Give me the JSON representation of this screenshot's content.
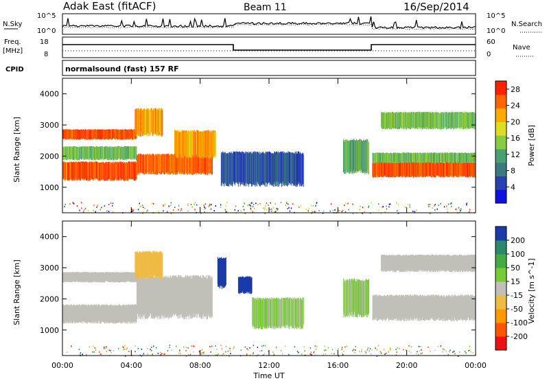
{
  "header": {
    "station": "Adak East (fitACF)",
    "beam": "Beam 11",
    "date": "16/Sep/2014"
  },
  "colors": {
    "power_scale": [
      "#1010e0",
      "#2a40b0",
      "#3a7a80",
      "#4aa070",
      "#88cc44",
      "#dddd22",
      "#ffaa00",
      "#ff6600",
      "#ff2200"
    ],
    "velocity_scale": [
      "#ee1111",
      "#ff5500",
      "#ff9900",
      "#eebb44",
      "#c0c0b8",
      "#77cc33",
      "#44aa44",
      "#2a8a6a",
      "#1a3aaa"
    ]
  },
  "top_panels": {
    "nsky": {
      "label": "N.Sky",
      "left_ticks": [
        "10^5",
        "10^0"
      ],
      "right_label": "N.Search",
      "right_ticks": [
        "10^5",
        "10^0"
      ]
    },
    "freq": {
      "label_1": "Freq.",
      "label_2": "[MHz]",
      "left_ticks": [
        "18",
        "8"
      ],
      "right_label": "Nave",
      "right_ticks": [
        "60",
        "0"
      ]
    },
    "cpid": {
      "label": "CPID",
      "text": "normalsound (fast) 157 RF"
    }
  },
  "chart_data": [
    {
      "type": "heatmap",
      "panel": "power",
      "ylabel": "Slant Range [km]",
      "yticks": [
        "1000",
        "2000",
        "3000",
        "4000"
      ],
      "ylim": [
        180,
        4500
      ],
      "colorbar_label": "Power [dB]",
      "colorbar_ticks": [
        "4",
        "8",
        "12",
        "16",
        "20",
        "24",
        "28"
      ],
      "colorbar_range": [
        0,
        30
      ],
      "bands": [
        {
          "t0": 0,
          "t1": 4.3,
          "r0": 2550,
          "r1": 2850,
          "value": 26
        },
        {
          "t0": 0,
          "t1": 4.3,
          "r0": 1250,
          "r1": 1800,
          "value": 26
        },
        {
          "t0": 0,
          "t1": 4.3,
          "r0": 1900,
          "r1": 2300,
          "value": 14
        },
        {
          "t0": 4.3,
          "t1": 8.7,
          "r0": 1450,
          "r1": 2050,
          "value": 25
        },
        {
          "t0": 6.5,
          "t1": 8.9,
          "r0": 2000,
          "r1": 2800,
          "value": 22
        },
        {
          "t0": 4.2,
          "t1": 5.8,
          "r0": 2700,
          "r1": 3500,
          "value": 22
        },
        {
          "t0": 9.2,
          "t1": 14.0,
          "r0": 1100,
          "r1": 2100,
          "value": 6
        },
        {
          "t0": 16.3,
          "t1": 17.8,
          "r0": 1500,
          "r1": 2500,
          "value": 12
        },
        {
          "t0": 18.0,
          "t1": 24.0,
          "r0": 1350,
          "r1": 1800,
          "value": 26
        },
        {
          "t0": 18.0,
          "t1": 24.0,
          "r0": 1800,
          "r1": 2100,
          "value": 14
        },
        {
          "t0": 18.5,
          "t1": 24.0,
          "r0": 2900,
          "r1": 3400,
          "value": 14
        }
      ]
    },
    {
      "type": "heatmap",
      "panel": "velocity",
      "ylabel": "Slant Range [km]",
      "yticks": [
        "1000",
        "2000",
        "3000",
        "4000"
      ],
      "ylim": [
        180,
        4500
      ],
      "xlabel": "Time UT",
      "xticks": [
        "00:00",
        "04:00",
        "08:00",
        "12:00",
        "16:00",
        "20:00",
        "00:00"
      ],
      "xlim": [
        0,
        24
      ],
      "colorbar_label": "Velocity [m s^-1]",
      "colorbar_ticks": [
        "200",
        "100",
        "50",
        "15",
        "-15",
        "-50",
        "-100",
        "-200"
      ],
      "colorbar_range": [
        -250,
        250
      ],
      "bands": [
        {
          "t0": 0,
          "t1": 4.3,
          "r0": 2550,
          "r1": 2850,
          "value": 0
        },
        {
          "t0": 0,
          "t1": 4.3,
          "r0": 1250,
          "r1": 1800,
          "value": 0
        },
        {
          "t0": 4.3,
          "t1": 8.7,
          "r0": 1450,
          "r1": 2700,
          "value": 0
        },
        {
          "t0": 4.2,
          "t1": 5.8,
          "r0": 2700,
          "r1": 3500,
          "value": -40
        },
        {
          "t0": 9.0,
          "t1": 9.5,
          "r0": 2400,
          "r1": 3300,
          "value": 220
        },
        {
          "t0": 10.2,
          "t1": 11.0,
          "r0": 2200,
          "r1": 2700,
          "value": 220
        },
        {
          "t0": 11.0,
          "t1": 14.0,
          "r0": 1100,
          "r1": 2000,
          "value": 30
        },
        {
          "t0": 16.3,
          "t1": 17.8,
          "r0": 1500,
          "r1": 2600,
          "value": 30
        },
        {
          "t0": 18.0,
          "t1": 24.0,
          "r0": 1350,
          "r1": 2100,
          "value": 0
        },
        {
          "t0": 18.5,
          "t1": 24.0,
          "r0": 2900,
          "r1": 3400,
          "value": 0
        }
      ]
    }
  ]
}
